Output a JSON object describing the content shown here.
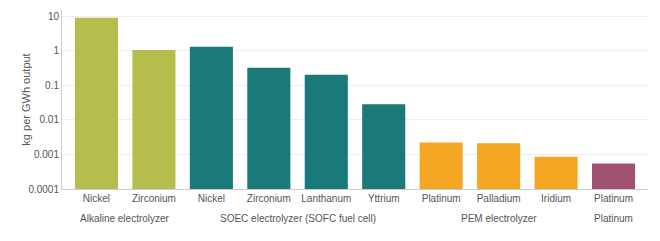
{
  "chart_data": {
    "type": "bar",
    "categories": [
      "Nickel",
      "Zirconium",
      "Nickel",
      "Zirconium",
      "Lanthanum",
      "Yttrium",
      "Platinum",
      "Palladium",
      "Iridium",
      "Platinum"
    ],
    "groups": [
      "Alkaline electrolyzer",
      "Alkaline electrolyzer",
      "SOEC electrolyzer (SOFC fuel cell)",
      "SOEC electrolyzer (SOFC fuel cell)",
      "SOEC electrolyzer (SOFC fuel cell)",
      "SOEC electrolyzer (SOFC fuel cell)",
      "PEM electrolyzer",
      "PEM electrolyzer",
      "PEM electrolyzer",
      "Platinum"
    ],
    "values": [
      9.0,
      1.05,
      1.3,
      0.32,
      0.2,
      0.028,
      0.0022,
      0.0021,
      0.00085,
      0.00055
    ],
    "colors": [
      "#b5bd4c",
      "#b5bd4c",
      "#1a7a7a",
      "#1a7a7a",
      "#1a7a7a",
      "#1a7a7a",
      "#f5a623",
      "#f5a623",
      "#f5a623",
      "#a05070"
    ],
    "ylabel": "kg per GWh output",
    "log": "y",
    "ylim": [
      0.0001,
      15
    ],
    "yticks": [
      0.0001,
      0.001,
      0.01,
      0.1,
      1,
      10
    ],
    "grid": true
  }
}
